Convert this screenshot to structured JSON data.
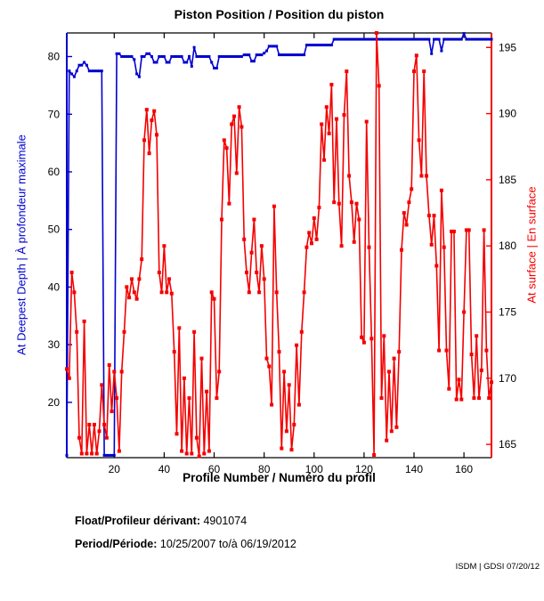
{
  "chart_data": {
    "type": "line",
    "title": "Piston Position / Position du piston",
    "xlabel": "Profile Number / Numéro du profil",
    "xlim": [
      1,
      171
    ],
    "xticks": [
      20,
      40,
      60,
      80,
      100,
      120,
      140,
      160
    ],
    "x_start": 1,
    "x_step": 1,
    "grid": false,
    "left_axis": {
      "label": "At Deepest Depth | À profondeur maximale",
      "color": "#0000cf",
      "ylim": [
        10.4,
        84.1
      ],
      "yticks": [
        20,
        30,
        40,
        50,
        60,
        70,
        80
      ]
    },
    "right_axis": {
      "label": "At surface | En surface",
      "color": "#f40000",
      "ylim": [
        164.0,
        196.1
      ],
      "yticks": [
        165,
        170,
        175,
        180,
        185,
        190,
        195
      ]
    },
    "series": [
      {
        "name": "At Deepest Depth | À profondeur maximale",
        "axis": "left",
        "color": "#0000cf",
        "marker_size": 3,
        "values": [
          10.8,
          77.5,
          77,
          76.5,
          77.5,
          78.5,
          78.5,
          79,
          78.5,
          77.5,
          77.5,
          77.5,
          77.5,
          77.5,
          77.5,
          10.8,
          10.8,
          10.8,
          10.8,
          10.8,
          80.5,
          80.5,
          80,
          80,
          80,
          80,
          80,
          79.5,
          77,
          76.5,
          80,
          80,
          80.5,
          80.5,
          80,
          79,
          79,
          80,
          80,
          80,
          79,
          79,
          80,
          80,
          80,
          80,
          80,
          79,
          79,
          80,
          78.3,
          81.6,
          80,
          80,
          80,
          80,
          80,
          80,
          79,
          78,
          78,
          80,
          80,
          80,
          80,
          80,
          80,
          80,
          80,
          80,
          80,
          80.3,
          80.3,
          80.3,
          79.2,
          79.2,
          80.3,
          80.3,
          80.3,
          80.6,
          81,
          81.8,
          81.8,
          81.8,
          81.8,
          80.3,
          80.3,
          80.3,
          80.3,
          80.3,
          80.3,
          80.3,
          80.3,
          80.3,
          80.3,
          80.3,
          82,
          82,
          82,
          82,
          82,
          82,
          82,
          82,
          82,
          82,
          82,
          83,
          83,
          83,
          83,
          83,
          83,
          83,
          83,
          83,
          83,
          83,
          83,
          83,
          83,
          83,
          83,
          83,
          83,
          83,
          83,
          83,
          83,
          83,
          83,
          83,
          83,
          83,
          83,
          83,
          83,
          83,
          83,
          83,
          83,
          83,
          83,
          83,
          83,
          83,
          80.5,
          83,
          83,
          83,
          81,
          83,
          83,
          83,
          83,
          83,
          83,
          83,
          83,
          84,
          83,
          83,
          83,
          83,
          83,
          83,
          83,
          83,
          83,
          83,
          83
        ]
      },
      {
        "name": "At surface | En surface",
        "axis": "right",
        "color": "#f40000",
        "marker_size": 4,
        "values": [
          170.7,
          170,
          178,
          176.5,
          173.5,
          165.5,
          164.3,
          174.3,
          164.3,
          166.5,
          164.3,
          166.5,
          164.3,
          166,
          169.5,
          166.5,
          165.5,
          171,
          167.5,
          170.5,
          168.5,
          164.5,
          170.5,
          173.5,
          176.9,
          176.1,
          177.5,
          176.5,
          176,
          177.5,
          179,
          188,
          190.3,
          187,
          189.5,
          190.2,
          188.4,
          178,
          176.5,
          180,
          176.5,
          177.5,
          176.4,
          172,
          165.8,
          173.8,
          164.5,
          170,
          164.3,
          168.5,
          164.3,
          173.5,
          165.5,
          164.1,
          171.5,
          164.3,
          169,
          164.5,
          176.5,
          176,
          168.5,
          170.5,
          182,
          188,
          187.4,
          183.2,
          189.2,
          189.8,
          185.5,
          190.5,
          189,
          180.5,
          178,
          176.5,
          179.5,
          182,
          178,
          176.5,
          180,
          177.5,
          171.5,
          170.9,
          168,
          183,
          176.5,
          172,
          164.7,
          170.5,
          166,
          169.5,
          164.6,
          166.5,
          172.5,
          168,
          173.5,
          176.5,
          179.9,
          181,
          180.2,
          182.1,
          180.5,
          182.9,
          189.2,
          186.5,
          190.5,
          188.5,
          192.2,
          183.3,
          189.6,
          183.2,
          180,
          189.9,
          193.2,
          185.3,
          183.3,
          180.3,
          183.2,
          182,
          173.1,
          172.7,
          189.4,
          179.9,
          173,
          164.2,
          196.1,
          192.1,
          168.5,
          173.2,
          165.3,
          170.5,
          166,
          171.5,
          166.3,
          172,
          179.7,
          182.5,
          181.6,
          183.3,
          184.3,
          193.2,
          194.4,
          188,
          185.3,
          193.2,
          185.3,
          182.3,
          180.1,
          182.3,
          178.5,
          172.1,
          184.2,
          179.9,
          172.1,
          169.2,
          181.1,
          181.1,
          168.4,
          169.9,
          168.4,
          175,
          181.2,
          181.2,
          171.8,
          168.5,
          173.2,
          168.5,
          170.6,
          181.2,
          172.1,
          168.5,
          169.7
        ]
      }
    ]
  },
  "footer": {
    "float_label": "Float/Profileur dérivant:",
    "float_value": "4901074",
    "period_label": "Period/Période:",
    "period_value": "10/25/2007 to/à 06/19/2012",
    "credit": "ISDM | GDSI 07/20/12"
  }
}
